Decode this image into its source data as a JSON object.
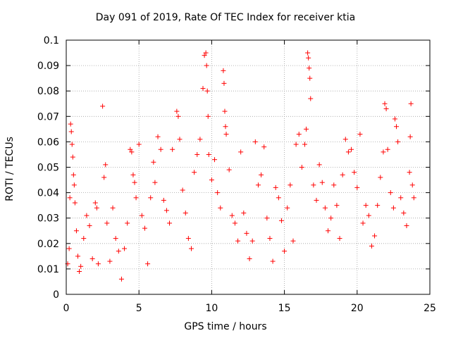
{
  "chart_data": {
    "type": "scatter",
    "title": "Day 091 of 2019, Rate Of TEC Index for receiver ktia",
    "xlabel": "GPS time / hours",
    "ylabel": "ROTI / TECUs",
    "xlim": [
      0,
      25
    ],
    "ylim": [
      0,
      0.1
    ],
    "xticks": [
      "0",
      "5",
      "10",
      "15",
      "20",
      "25"
    ],
    "yticks": [
      "0",
      "0.01",
      "0.02",
      "0.03",
      "0.04",
      "0.05",
      "0.06",
      "0.07",
      "0.08",
      "0.09",
      "0.1"
    ],
    "grid": true,
    "marker": "+",
    "color": "#ff0000",
    "series": [
      {
        "name": "ROTI",
        "points": [
          [
            0.1,
            0.012
          ],
          [
            0.2,
            0.018
          ],
          [
            0.25,
            0.038
          ],
          [
            0.3,
            0.067
          ],
          [
            0.35,
            0.064
          ],
          [
            0.4,
            0.059
          ],
          [
            0.45,
            0.054
          ],
          [
            0.5,
            0.047
          ],
          [
            0.55,
            0.043
          ],
          [
            0.6,
            0.036
          ],
          [
            0.7,
            0.025
          ],
          [
            0.8,
            0.015
          ],
          [
            0.9,
            0.009
          ],
          [
            1.0,
            0.011
          ],
          [
            1.2,
            0.022
          ],
          [
            1.4,
            0.031
          ],
          [
            1.6,
            0.027
          ],
          [
            1.8,
            0.014
          ],
          [
            2.0,
            0.036
          ],
          [
            2.1,
            0.034
          ],
          [
            2.2,
            0.012
          ],
          [
            2.5,
            0.074
          ],
          [
            2.6,
            0.046
          ],
          [
            2.7,
            0.051
          ],
          [
            2.8,
            0.028
          ],
          [
            3.0,
            0.013
          ],
          [
            3.2,
            0.034
          ],
          [
            3.4,
            0.022
          ],
          [
            3.6,
            0.017
          ],
          [
            3.8,
            0.006
          ],
          [
            4.0,
            0.018
          ],
          [
            4.2,
            0.028
          ],
          [
            4.4,
            0.057
          ],
          [
            4.5,
            0.056
          ],
          [
            4.6,
            0.047
          ],
          [
            4.7,
            0.044
          ],
          [
            4.8,
            0.038
          ],
          [
            5.0,
            0.059
          ],
          [
            5.2,
            0.031
          ],
          [
            5.4,
            0.026
          ],
          [
            5.6,
            0.012
          ],
          [
            5.8,
            0.038
          ],
          [
            6.0,
            0.052
          ],
          [
            6.1,
            0.044
          ],
          [
            6.3,
            0.062
          ],
          [
            6.5,
            0.057
          ],
          [
            6.7,
            0.037
          ],
          [
            6.9,
            0.033
          ],
          [
            7.1,
            0.028
          ],
          [
            7.3,
            0.057
          ],
          [
            7.6,
            0.072
          ],
          [
            7.7,
            0.07
          ],
          [
            7.8,
            0.061
          ],
          [
            8.0,
            0.041
          ],
          [
            8.2,
            0.032
          ],
          [
            8.4,
            0.022
          ],
          [
            8.6,
            0.018
          ],
          [
            8.8,
            0.048
          ],
          [
            9.0,
            0.055
          ],
          [
            9.2,
            0.061
          ],
          [
            9.4,
            0.081
          ],
          [
            9.5,
            0.094
          ],
          [
            9.6,
            0.095
          ],
          [
            9.65,
            0.09
          ],
          [
            9.7,
            0.08
          ],
          [
            9.75,
            0.07
          ],
          [
            9.8,
            0.055
          ],
          [
            10.0,
            0.045
          ],
          [
            10.2,
            0.053
          ],
          [
            10.4,
            0.04
          ],
          [
            10.6,
            0.034
          ],
          [
            10.8,
            0.088
          ],
          [
            10.85,
            0.083
          ],
          [
            10.9,
            0.072
          ],
          [
            10.95,
            0.066
          ],
          [
            11.0,
            0.063
          ],
          [
            11.2,
            0.049
          ],
          [
            11.4,
            0.031
          ],
          [
            11.6,
            0.028
          ],
          [
            11.8,
            0.021
          ],
          [
            12.0,
            0.056
          ],
          [
            12.2,
            0.032
          ],
          [
            12.4,
            0.024
          ],
          [
            12.6,
            0.014
          ],
          [
            12.8,
            0.021
          ],
          [
            13.0,
            0.06
          ],
          [
            13.2,
            0.043
          ],
          [
            13.4,
            0.047
          ],
          [
            13.6,
            0.058
          ],
          [
            13.8,
            0.03
          ],
          [
            14.0,
            0.022
          ],
          [
            14.2,
            0.013
          ],
          [
            14.4,
            0.042
          ],
          [
            14.6,
            0.038
          ],
          [
            14.8,
            0.029
          ],
          [
            15.0,
            0.017
          ],
          [
            15.2,
            0.034
          ],
          [
            15.4,
            0.043
          ],
          [
            15.6,
            0.021
          ],
          [
            15.8,
            0.059
          ],
          [
            16.0,
            0.063
          ],
          [
            16.2,
            0.05
          ],
          [
            16.4,
            0.059
          ],
          [
            16.5,
            0.065
          ],
          [
            16.6,
            0.095
          ],
          [
            16.65,
            0.093
          ],
          [
            16.7,
            0.089
          ],
          [
            16.75,
            0.085
          ],
          [
            16.8,
            0.077
          ],
          [
            17.0,
            0.043
          ],
          [
            17.2,
            0.037
          ],
          [
            17.4,
            0.051
          ],
          [
            17.6,
            0.044
          ],
          [
            17.8,
            0.034
          ],
          [
            18.0,
            0.025
          ],
          [
            18.2,
            0.03
          ],
          [
            18.4,
            0.043
          ],
          [
            18.6,
            0.035
          ],
          [
            18.8,
            0.022
          ],
          [
            19.0,
            0.047
          ],
          [
            19.2,
            0.061
          ],
          [
            19.4,
            0.056
          ],
          [
            19.6,
            0.057
          ],
          [
            19.8,
            0.048
          ],
          [
            20.0,
            0.042
          ],
          [
            20.2,
            0.063
          ],
          [
            20.4,
            0.028
          ],
          [
            20.6,
            0.035
          ],
          [
            20.8,
            0.031
          ],
          [
            21.0,
            0.019
          ],
          [
            21.2,
            0.023
          ],
          [
            21.4,
            0.035
          ],
          [
            21.6,
            0.046
          ],
          [
            21.8,
            0.056
          ],
          [
            21.9,
            0.075
          ],
          [
            22.0,
            0.073
          ],
          [
            22.1,
            0.057
          ],
          [
            22.3,
            0.04
          ],
          [
            22.5,
            0.034
          ],
          [
            22.6,
            0.069
          ],
          [
            22.7,
            0.066
          ],
          [
            22.8,
            0.06
          ],
          [
            23.0,
            0.038
          ],
          [
            23.2,
            0.032
          ],
          [
            23.4,
            0.027
          ],
          [
            23.6,
            0.048
          ],
          [
            23.65,
            0.062
          ],
          [
            23.7,
            0.075
          ],
          [
            23.8,
            0.043
          ],
          [
            23.9,
            0.038
          ]
        ]
      }
    ]
  }
}
